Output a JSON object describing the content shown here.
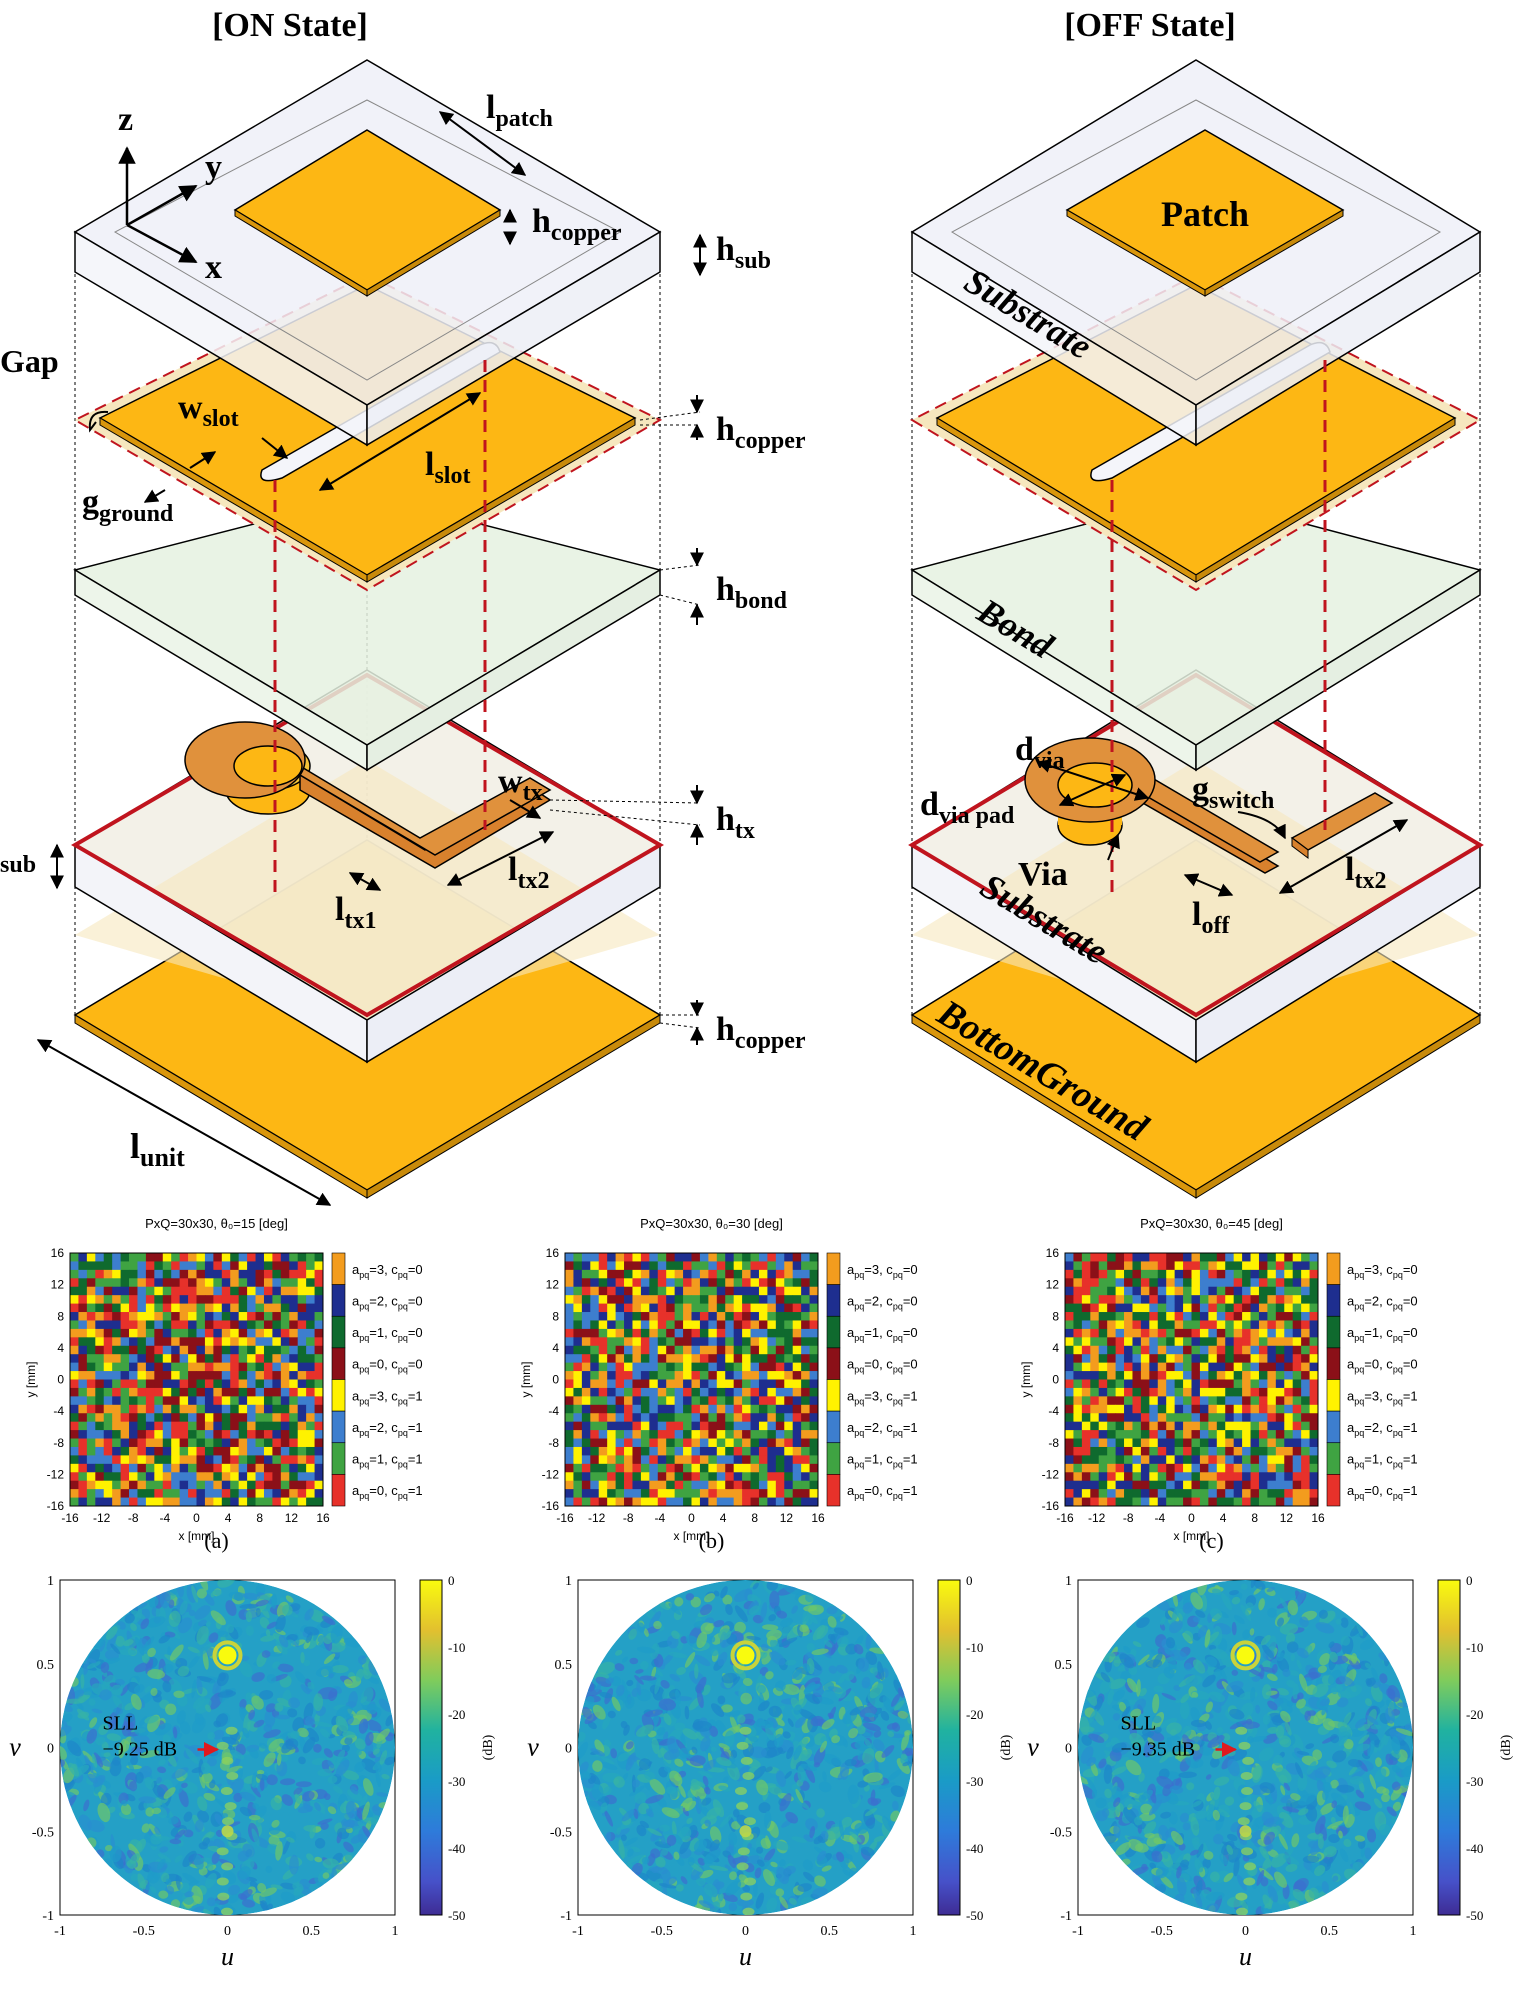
{
  "top": {
    "on_title": "[ON State]",
    "off_title": "[OFF State]",
    "on_labels": {
      "z": "z",
      "y": "y",
      "x": "x",
      "l_patch": "l",
      "l_patch_sub": "patch",
      "h_copper1": "h",
      "h_copper1_sub": "copper",
      "h_sub": "h",
      "h_sub_sub": "sub",
      "gap": "Gap",
      "w_slot": "w",
      "w_slot_sub": "slot",
      "h_copper2": "h",
      "h_copper2_sub": "copper",
      "l_slot": "l",
      "l_slot_sub": "slot",
      "g_ground": "g",
      "g_ground_sub": "ground",
      "h_bond": "h",
      "h_bond_sub": "bond",
      "w_tx": "w",
      "w_tx_sub": "tx",
      "h_tx": "h",
      "h_tx_sub": "tx",
      "h_sub2_sub": "sub",
      "l_tx2": "l",
      "l_tx2_sub": "tx2",
      "l_tx1": "l",
      "l_tx1_sub": "tx1",
      "h_copper3": "h",
      "h_copper3_sub": "copper",
      "l_unit": "l",
      "l_unit_sub": "unit"
    },
    "off_labels": {
      "patch": "Patch",
      "substrate1": "Substrate",
      "bond": "Bond",
      "d_via": "d",
      "d_via_sub": "via",
      "d_via_pad": "d",
      "d_via_pad_sub": "via pad",
      "g_switch": "g",
      "g_switch_sub": "switch",
      "via": "Via",
      "l_off": "l",
      "l_off_sub": "off",
      "l_tx2": "l",
      "l_tx2_sub": "tx2",
      "substrate2": "Substrate",
      "bottom_ground": "BottomGround"
    }
  },
  "colors": {
    "copper": "#FDB714",
    "feed": "#E0913C",
    "substrate": "#EEF0F8",
    "bond": "#E5F1E1",
    "red": "#C0141E",
    "grid": [
      "#E7312A",
      "#3FA342",
      "#3D7ECE",
      "#FFF200",
      "#8B1018",
      "#0F6A2E",
      "#1E2E8F",
      "#F39C1E"
    ]
  },
  "grid_panels": [
    {
      "title": "PxQ=30x30, θ₀=15 [deg]",
      "caption": "(a)",
      "seed": 17
    },
    {
      "title": "PxQ=30x30, θ₀=30 [deg]",
      "caption": "(b)",
      "seed": 43
    },
    {
      "title": "PxQ=30x30, θ₀=45 [deg]",
      "caption": "(c)",
      "seed": 91
    }
  ],
  "grid_axes": {
    "xlabel": "x [mm]",
    "ylabel": "y [mm]",
    "ticks": [
      "-16",
      "-12",
      "-8",
      "-4",
      "0",
      "4",
      "8",
      "12",
      "16"
    ]
  },
  "grid_legend": [
    {
      "a": "3",
      "c": "0",
      "color": "#F39C1E"
    },
    {
      "a": "2",
      "c": "0",
      "color": "#1E2E8F"
    },
    {
      "a": "1",
      "c": "0",
      "color": "#0F6A2E"
    },
    {
      "a": "0",
      "c": "0",
      "color": "#8B1018"
    },
    {
      "a": "3",
      "c": "1",
      "color": "#FFF200"
    },
    {
      "a": "2",
      "c": "1",
      "color": "#3D7ECE"
    },
    {
      "a": "1",
      "c": "1",
      "color": "#3FA342"
    },
    {
      "a": "0",
      "c": "1",
      "color": "#E7312A"
    }
  ],
  "pattern_panels": [
    {
      "sll_label": "SLL",
      "sll_value": "−9.25 dB",
      "show_sll": true
    },
    {
      "sll_label": "",
      "sll_value": "",
      "show_sll": false
    },
    {
      "sll_label": "SLL",
      "sll_value": "−9.35 dB",
      "show_sll": true
    }
  ],
  "pattern_axes": {
    "xlabel": "u",
    "ylabel": "v",
    "xticks": [
      "-1",
      "-0.5",
      "0",
      "0.5",
      "1"
    ],
    "yticks": [
      "1",
      "0.5",
      "0",
      "-0.5",
      "-1"
    ],
    "colorbar_ticks": [
      "0",
      "-10",
      "-20",
      "-30",
      "-40",
      "-50"
    ],
    "colorbar_unit": "(dB)"
  }
}
